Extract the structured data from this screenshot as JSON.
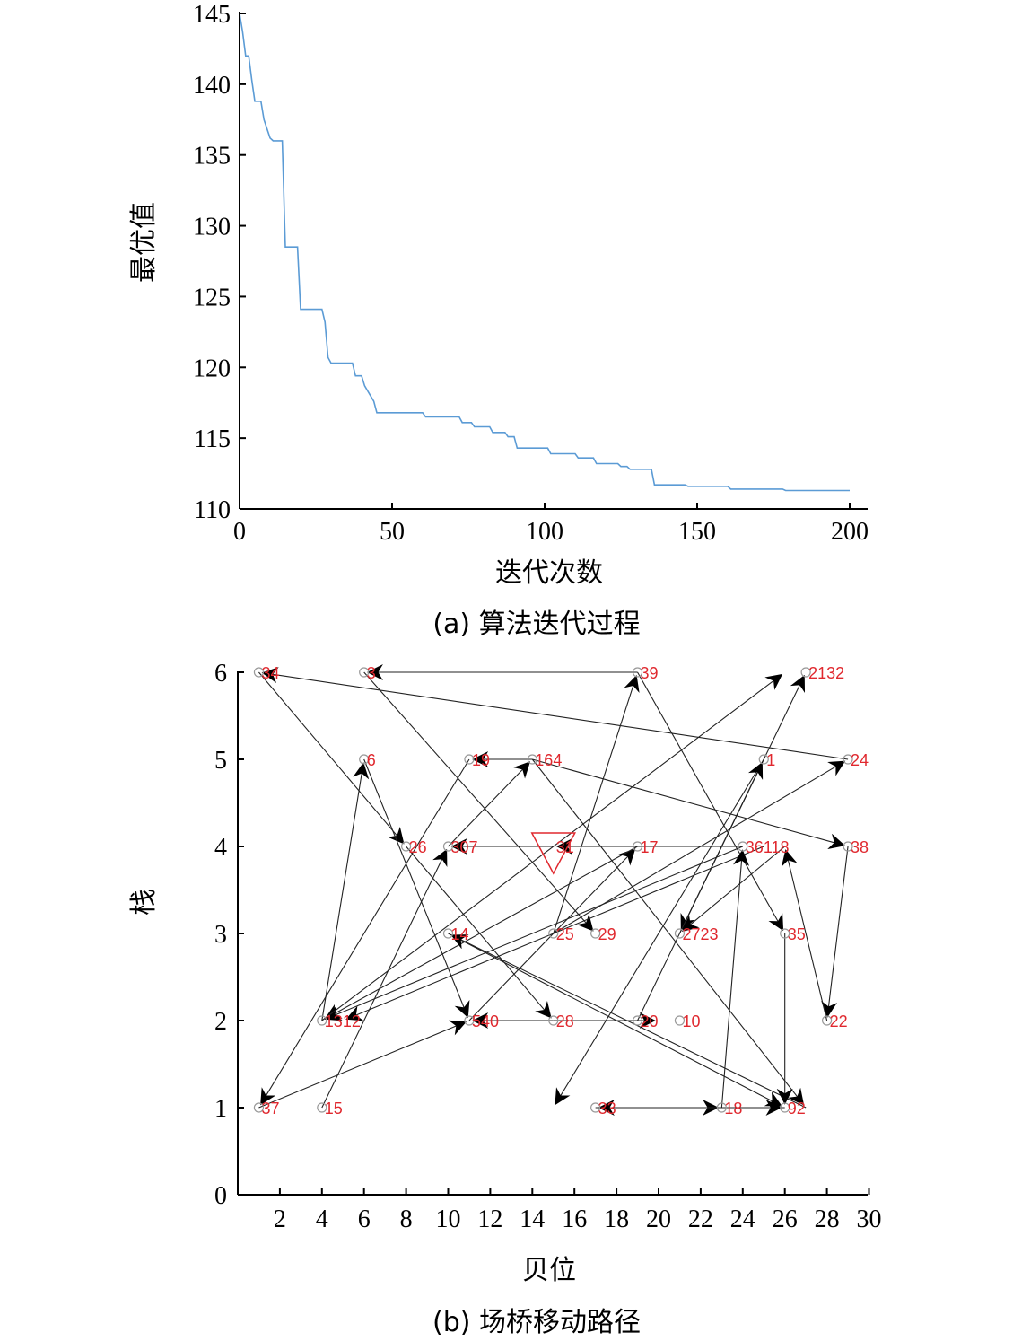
{
  "chart_data": [
    {
      "type": "line",
      "caption": "(a) 算法迭代过程",
      "xlabel": "迭代次数",
      "ylabel": "最优值",
      "xlim": [
        0,
        200
      ],
      "ylim": [
        110,
        145
      ],
      "xticks": [
        "0",
        "50",
        "100",
        "150",
        "200"
      ],
      "yticks": [
        "110",
        "115",
        "120",
        "125",
        "130",
        "135",
        "140",
        "145"
      ],
      "line_color": "#5b9bd5",
      "series": [
        {
          "x": [
            0,
            1,
            2,
            3,
            4,
            5,
            7,
            8,
            10,
            11,
            14,
            15,
            19,
            20,
            27,
            28,
            29,
            30,
            37,
            38,
            40,
            41,
            44,
            45,
            60,
            61,
            72,
            73,
            76,
            77,
            82,
            83,
            87,
            88,
            90,
            91,
            101,
            102,
            110,
            111,
            116,
            117,
            124,
            125,
            127,
            128,
            135,
            136,
            146,
            147,
            160,
            161,
            178,
            179,
            200
          ],
          "y": [
            145,
            143.7,
            142.0,
            142.0,
            140.3,
            138.8,
            138.8,
            137.5,
            136.2,
            136.0,
            136.0,
            128.5,
            128.5,
            124.1,
            124.1,
            123.2,
            120.7,
            120.3,
            120.3,
            119.4,
            119.4,
            118.7,
            117.6,
            116.8,
            116.8,
            116.5,
            116.5,
            116.1,
            116.1,
            115.8,
            115.8,
            115.4,
            115.4,
            115.1,
            115.1,
            114.3,
            114.3,
            113.9,
            113.9,
            113.6,
            113.6,
            113.2,
            113.2,
            113.0,
            113.0,
            112.8,
            112.8,
            111.7,
            111.7,
            111.6,
            111.6,
            111.4,
            111.4,
            111.3,
            111.3
          ]
        }
      ]
    },
    {
      "type": "scatter",
      "caption": "(b) 场桥移动路径",
      "xlabel": "贝位",
      "ylabel": "栈",
      "xlim": [
        0,
        30
      ],
      "ylim": [
        0,
        6
      ],
      "xticks": [
        "2",
        "4",
        "6",
        "8",
        "10",
        "12",
        "14",
        "16",
        "18",
        "20",
        "22",
        "24",
        "26",
        "28",
        "30"
      ],
      "yticks": [
        "0",
        "1",
        "2",
        "3",
        "4",
        "5",
        "6"
      ],
      "start_marker": {
        "x": 15,
        "y": 4,
        "label": "31",
        "color": "#e0282e"
      },
      "points": [
        {
          "label": "34",
          "x": 1,
          "y": 6
        },
        {
          "label": "3",
          "x": 6,
          "y": 6
        },
        {
          "label": "39",
          "x": 19,
          "y": 6
        },
        {
          "label": "2132",
          "x": 27,
          "y": 6
        },
        {
          "label": "6",
          "x": 6,
          "y": 5
        },
        {
          "label": "19",
          "x": 11,
          "y": 5
        },
        {
          "label": "164",
          "x": 14,
          "y": 5
        },
        {
          "label": "1",
          "x": 25,
          "y": 5
        },
        {
          "label": "24",
          "x": 29,
          "y": 5
        },
        {
          "label": "26",
          "x": 8,
          "y": 4
        },
        {
          "label": "307",
          "x": 10,
          "y": 4
        },
        {
          "label": "17",
          "x": 19,
          "y": 4
        },
        {
          "label": "36118",
          "x": 24,
          "y": 4
        },
        {
          "label": "38",
          "x": 29,
          "y": 4
        },
        {
          "label": "14",
          "x": 10,
          "y": 3
        },
        {
          "label": "25",
          "x": 15,
          "y": 3
        },
        {
          "label": "29",
          "x": 17,
          "y": 3
        },
        {
          "label": "2723",
          "x": 21,
          "y": 3
        },
        {
          "label": "35",
          "x": 26,
          "y": 3
        },
        {
          "label": "1312",
          "x": 4,
          "y": 2
        },
        {
          "label": "540",
          "x": 11,
          "y": 2
        },
        {
          "label": "28",
          "x": 15,
          "y": 2
        },
        {
          "label": "20",
          "x": 19,
          "y": 2
        },
        {
          "label": "10",
          "x": 21,
          "y": 2
        },
        {
          "label": "22",
          "x": 28,
          "y": 2
        },
        {
          "label": "37",
          "x": 1,
          "y": 1
        },
        {
          "label": "15",
          "x": 4,
          "y": 1
        },
        {
          "label": "33",
          "x": 17,
          "y": 1
        },
        {
          "label": "18",
          "x": 23,
          "y": 1
        },
        {
          "label": "92",
          "x": 26,
          "y": 1
        }
      ],
      "moves": [
        {
          "from": [
            19,
            6
          ],
          "to": [
            6,
            6
          ]
        },
        {
          "from": [
            29,
            5
          ],
          "to": [
            1,
            6
          ]
        },
        {
          "from": [
            1,
            6
          ],
          "to": [
            8,
            4
          ]
        },
        {
          "from": [
            6,
            6
          ],
          "to": [
            17,
            3
          ]
        },
        {
          "from": [
            19,
            6
          ],
          "to": [
            26,
            3
          ]
        },
        {
          "from": [
            14,
            5
          ],
          "to": [
            11,
            5
          ]
        },
        {
          "from": [
            14,
            5
          ],
          "to": [
            29,
            4
          ]
        },
        {
          "from": [
            14,
            5
          ],
          "to": [
            27,
            1
          ]
        },
        {
          "from": [
            11,
            5
          ],
          "to": [
            1,
            1
          ]
        },
        {
          "from": [
            10,
            4
          ],
          "to": [
            14,
            5
          ]
        },
        {
          "from": [
            15,
            4
          ],
          "to": [
            10,
            4
          ]
        },
        {
          "from": [
            24,
            4
          ],
          "to": [
            15,
            4
          ]
        },
        {
          "from": [
            6,
            5
          ],
          "to": [
            11,
            2
          ]
        },
        {
          "from": [
            4,
            2
          ],
          "to": [
            6,
            5
          ]
        },
        {
          "from": [
            8,
            4
          ],
          "to": [
            15,
            2
          ]
        },
        {
          "from": [
            15,
            3
          ],
          "to": [
            19,
            6
          ]
        },
        {
          "from": [
            15,
            3
          ],
          "to": [
            29,
            5
          ]
        },
        {
          "from": [
            11,
            2
          ],
          "to": [
            19,
            4
          ]
        },
        {
          "from": [
            19,
            4
          ],
          "to": [
            4,
            2
          ]
        },
        {
          "from": [
            24,
            4
          ],
          "to": [
            4,
            2
          ]
        },
        {
          "from": [
            25,
            4
          ],
          "to": [
            5,
            2
          ]
        },
        {
          "from": [
            4,
            1
          ],
          "to": [
            10,
            4
          ]
        },
        {
          "from": [
            1,
            1
          ],
          "to": [
            11,
            2
          ]
        },
        {
          "from": [
            4,
            2
          ],
          "to": [
            26,
            6
          ]
        },
        {
          "from": [
            21,
            3
          ],
          "to": [
            27,
            6
          ]
        },
        {
          "from": [
            25,
            5
          ],
          "to": [
            21,
            3
          ]
        },
        {
          "from": [
            25,
            5
          ],
          "to": [
            15,
            1
          ]
        },
        {
          "from": [
            10,
            3
          ],
          "to": [
            26,
            1
          ]
        },
        {
          "from": [
            27,
            1
          ],
          "to": [
            10,
            3
          ]
        },
        {
          "from": [
            15,
            2
          ],
          "to": [
            20,
            2
          ]
        },
        {
          "from": [
            19,
            2
          ],
          "to": [
            25,
            5
          ]
        },
        {
          "from": [
            26,
            4
          ],
          "to": [
            21,
            3
          ]
        },
        {
          "from": [
            29,
            4
          ],
          "to": [
            28,
            2
          ]
        },
        {
          "from": [
            28,
            2
          ],
          "to": [
            26,
            4
          ]
        },
        {
          "from": [
            26,
            3
          ],
          "to": [
            26,
            1
          ]
        },
        {
          "from": [
            17,
            1
          ],
          "to": [
            23,
            1
          ]
        },
        {
          "from": [
            23,
            1
          ],
          "to": [
            24,
            4
          ]
        },
        {
          "from": [
            26,
            1
          ],
          "to": [
            17,
            1
          ]
        },
        {
          "from": [
            23,
            1
          ],
          "to": [
            26,
            1
          ]
        },
        {
          "from": [
            15,
            2
          ],
          "to": [
            11,
            2
          ]
        }
      ]
    }
  ]
}
